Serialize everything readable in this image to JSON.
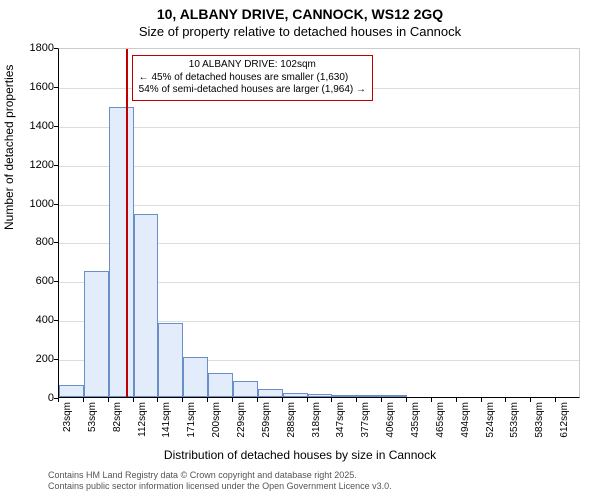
{
  "title_line1": "10, ALBANY DRIVE, CANNOCK, WS12 2GQ",
  "title_line2": "Size of property relative to detached houses in Cannock",
  "ylabel": "Number of detached properties",
  "xlabel": "Distribution of detached houses by size in Cannock",
  "footer_line1": "Contains HM Land Registry data © Crown copyright and database right 2025.",
  "footer_line2": "Contains public sector information licensed under the Open Government Licence v3.0.",
  "chart": {
    "type": "histogram",
    "background_color": "#ffffff",
    "grid_color": "#dddddd",
    "bar_fill": "#e3ecfb",
    "bar_stroke": "#6a8fc8",
    "marker_color": "#c00000",
    "annot_border": "#c00000",
    "annot_bg": "#ffffff",
    "ylim": [
      0,
      1800
    ],
    "ytick_step": 200,
    "categories": [
      "23sqm",
      "53sqm",
      "82sqm",
      "112sqm",
      "141sqm",
      "171sqm",
      "200sqm",
      "229sqm",
      "259sqm",
      "288sqm",
      "318sqm",
      "347sqm",
      "377sqm",
      "406sqm",
      "435sqm",
      "465sqm",
      "494sqm",
      "524sqm",
      "553sqm",
      "583sqm",
      "612sqm"
    ],
    "values": [
      60,
      650,
      1490,
      940,
      380,
      205,
      125,
      80,
      40,
      20,
      15,
      10,
      10,
      10,
      0,
      0,
      0,
      0,
      0,
      0,
      0
    ],
    "marker_at_value_sqm": 102,
    "x_start_sqm": 23,
    "x_step_sqm": 29.45,
    "annot_line1": "10 ALBANY DRIVE: 102sqm",
    "annot_line2": "← 45% of detached houses are smaller (1,630)",
    "annot_line3": "54% of semi-detached houses are larger (1,964) →",
    "title_fontsize": 14,
    "subtitle_fontsize": 13,
    "axis_label_fontsize": 12,
    "tick_fontsize": 11,
    "annot_fontsize": 10,
    "footer_fontsize": 9,
    "footer_color": "#555555"
  }
}
